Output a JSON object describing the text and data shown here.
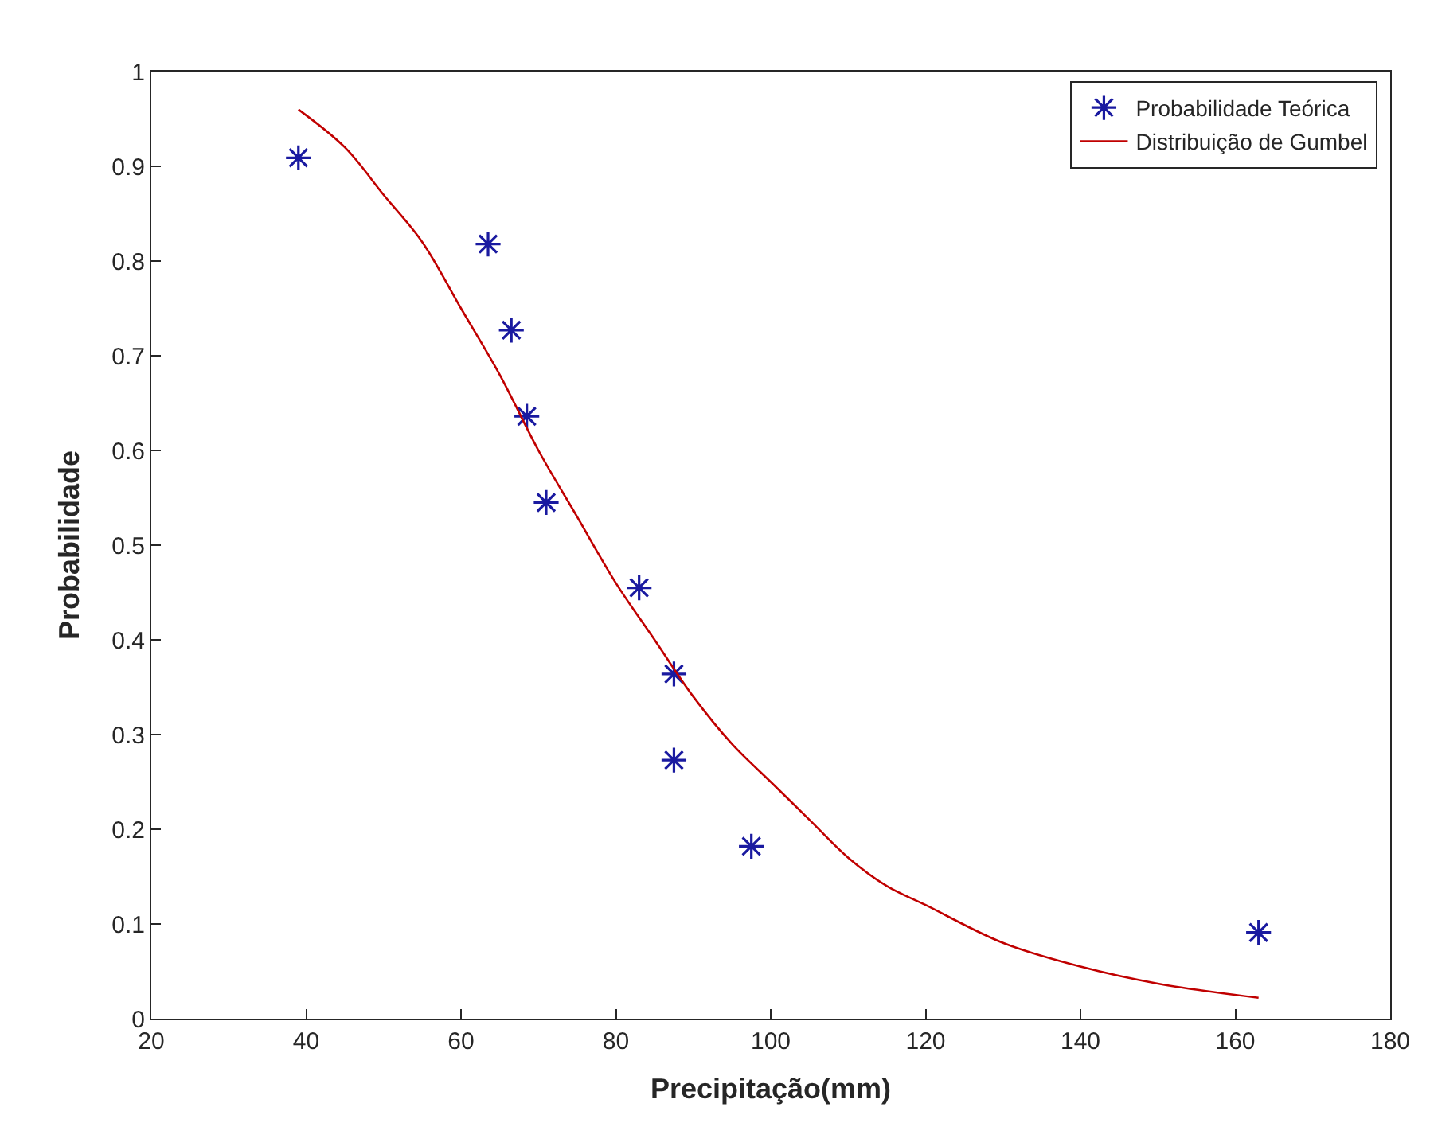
{
  "chart_data": {
    "type": "scatter",
    "xlabel": "Precipitação(mm)",
    "ylabel": "Probabilidade",
    "xlim": [
      20,
      180
    ],
    "xticks": [
      20,
      40,
      60,
      80,
      100,
      120,
      140,
      160,
      180
    ],
    "ylim": [
      0,
      1
    ],
    "yticks": [
      0,
      0.1,
      0.2,
      0.3,
      0.4,
      0.5,
      0.6,
      0.7,
      0.8,
      0.9,
      1
    ],
    "legend": "top right",
    "series": [
      {
        "name": "Probabilidade Teórica",
        "marker": "cross",
        "color": "#1a1aa0",
        "x": [
          39,
          63.5,
          66.5,
          68.5,
          71,
          83,
          87.5,
          87.5,
          97.5,
          163
        ],
        "values": [
          0.909,
          0.818,
          0.727,
          0.636,
          0.545,
          0.455,
          0.364,
          0.273,
          0.182,
          0.091
        ]
      },
      {
        "name": "Distribuição de Gumbel",
        "type": "line",
        "marker": "none",
        "line_style": "solid",
        "color": "#c00000",
        "x": [
          39,
          45,
          50,
          55,
          60,
          65,
          70,
          75,
          80,
          85,
          90,
          95,
          100,
          105,
          110,
          115,
          120,
          130,
          140,
          150,
          163
        ],
        "values": [
          0.96,
          0.92,
          0.87,
          0.82,
          0.75,
          0.68,
          0.6,
          0.53,
          0.46,
          0.4,
          0.34,
          0.29,
          0.25,
          0.21,
          0.17,
          0.14,
          0.12,
          0.08,
          0.055,
          0.037,
          0.022
        ]
      }
    ]
  }
}
